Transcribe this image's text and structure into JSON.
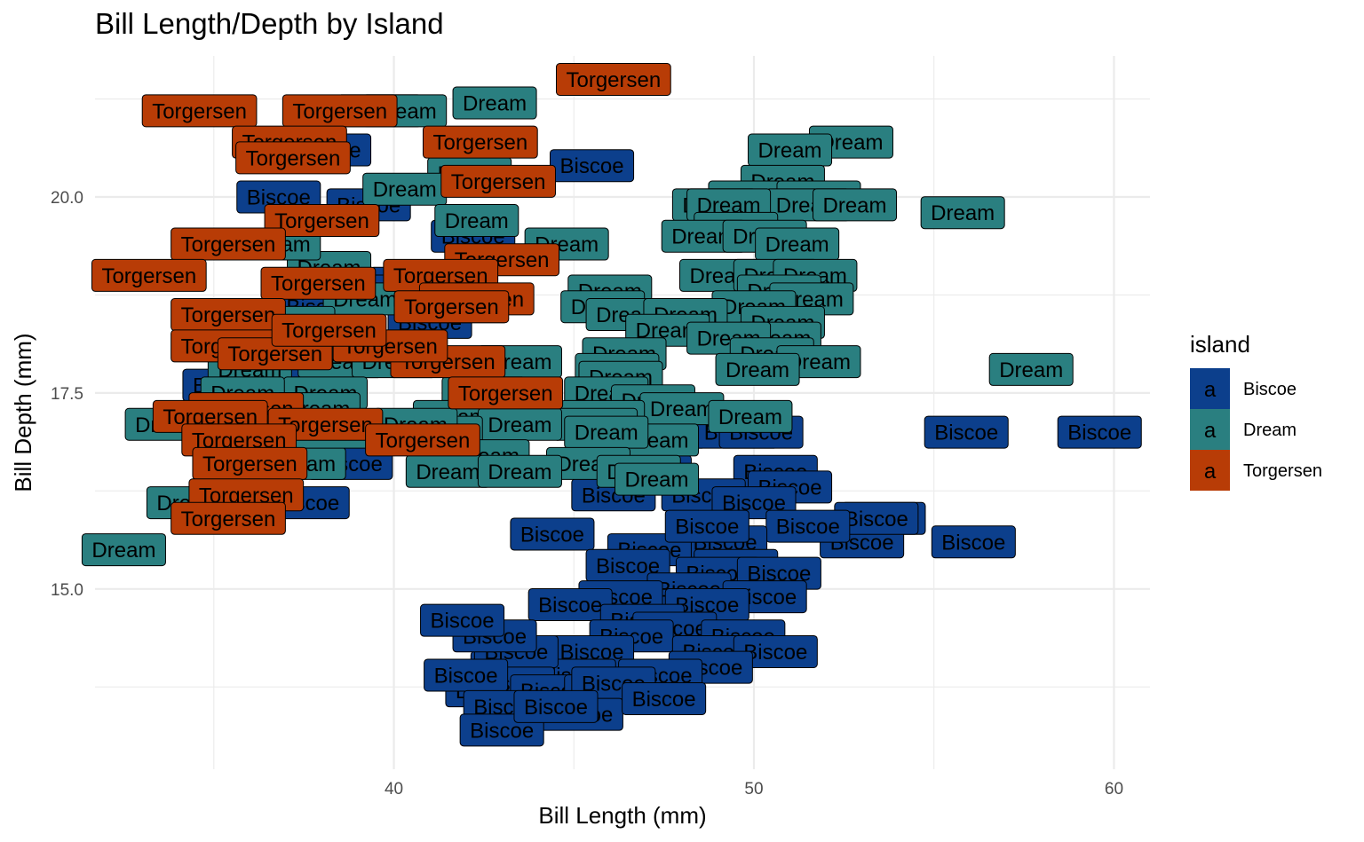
{
  "chart_data": {
    "type": "scatter",
    "title": "Bill Length/Depth by Island",
    "xlabel": "Bill Length (mm)",
    "ylabel": "Bill Depth (mm)",
    "xlim": [
      31.7,
      61.0
    ],
    "ylim": [
      12.7,
      21.8
    ],
    "x_ticks": [
      40,
      50,
      60
    ],
    "y_ticks": [
      15.0,
      17.5,
      20.0
    ],
    "x_tick_labels": [
      "40",
      "50",
      "60"
    ],
    "y_tick_labels": [
      "15.0",
      "17.5",
      "20.0"
    ],
    "grid": true,
    "legend": {
      "title": "island",
      "position": "right",
      "key_glyph": "a"
    },
    "colors": {
      "Biscoe": "#0C3F8C",
      "Dream": "#2A7F80",
      "Torgersen": "#B83C06"
    },
    "series": [
      {
        "name": "Biscoe",
        "points": [
          [
            45.5,
            20.4
          ],
          [
            40.5,
            18.9
          ],
          [
            39.6,
            21.1
          ],
          [
            38.2,
            20.6
          ],
          [
            39.3,
            19.9
          ],
          [
            36.8,
            20.0
          ],
          [
            42.2,
            19.5
          ],
          [
            38.9,
            18.8
          ],
          [
            41.6,
            18.7
          ],
          [
            41.0,
            18.4
          ],
          [
            37.9,
            18.6
          ],
          [
            36.4,
            17.6
          ],
          [
            35.3,
            17.6
          ],
          [
            37.8,
            17.3
          ],
          [
            38.8,
            16.6
          ],
          [
            37.6,
            16.1
          ],
          [
            47.5,
            17.0
          ],
          [
            49.5,
            17.0
          ],
          [
            50.2,
            17.0
          ],
          [
            55.9,
            17.0
          ],
          [
            59.6,
            17.0
          ],
          [
            50.6,
            16.5
          ],
          [
            51.0,
            16.3
          ],
          [
            46.1,
            16.2
          ],
          [
            48.6,
            16.2
          ],
          [
            50.0,
            16.1
          ],
          [
            53.6,
            15.9
          ],
          [
            56.1,
            15.6
          ],
          [
            53.0,
            15.6
          ],
          [
            53.4,
            15.9
          ],
          [
            51.5,
            15.8
          ],
          [
            49.2,
            15.6
          ],
          [
            44.4,
            15.7
          ],
          [
            47.1,
            15.5
          ],
          [
            46.5,
            15.3
          ],
          [
            49.5,
            15.3
          ],
          [
            49.0,
            15.2
          ],
          [
            50.7,
            15.2
          ],
          [
            48.2,
            15.0
          ],
          [
            50.3,
            14.9
          ],
          [
            46.3,
            14.9
          ],
          [
            48.7,
            14.8
          ],
          [
            44.9,
            14.8
          ],
          [
            46.9,
            14.6
          ],
          [
            47.8,
            14.5
          ],
          [
            49.7,
            14.4
          ],
          [
            46.6,
            14.4
          ],
          [
            48.9,
            14.2
          ],
          [
            45.5,
            14.2
          ],
          [
            50.6,
            14.2
          ],
          [
            45.0,
            13.9
          ],
          [
            48.8,
            14.0
          ],
          [
            47.4,
            13.9
          ],
          [
            43.3,
            14.0
          ],
          [
            43.4,
            14.2
          ],
          [
            42.6,
            13.7
          ],
          [
            43.3,
            13.8
          ],
          [
            44.4,
            13.7
          ],
          [
            45.9,
            13.7
          ],
          [
            46.1,
            13.8
          ],
          [
            42.0,
            13.9
          ],
          [
            43.1,
            13.5
          ],
          [
            45.2,
            13.4
          ],
          [
            47.5,
            13.6
          ],
          [
            43.0,
            13.2
          ],
          [
            44.5,
            13.5
          ],
          [
            42.8,
            14.4
          ],
          [
            41.9,
            14.6
          ],
          [
            47.1,
            16.5
          ],
          [
            48.7,
            15.8
          ]
        ]
      },
      {
        "name": "Dream",
        "points": [
          [
            42.8,
            21.2
          ],
          [
            40.3,
            21.1
          ],
          [
            52.7,
            20.7
          ],
          [
            51.0,
            20.6
          ],
          [
            42.1,
            20.3
          ],
          [
            50.8,
            20.2
          ],
          [
            40.3,
            20.1
          ],
          [
            49.9,
            20.0
          ],
          [
            51.8,
            20.0
          ],
          [
            51.5,
            19.9
          ],
          [
            48.9,
            19.9
          ],
          [
            52.8,
            19.9
          ],
          [
            49.3,
            19.9
          ],
          [
            55.8,
            19.8
          ],
          [
            42.3,
            19.7
          ],
          [
            49.5,
            19.6
          ],
          [
            48.6,
            19.5
          ],
          [
            50.3,
            19.5
          ],
          [
            51.2,
            19.4
          ],
          [
            44.8,
            19.4
          ],
          [
            38.2,
            19.1
          ],
          [
            36.8,
            19.4
          ],
          [
            49.1,
            19.0
          ],
          [
            50.6,
            19.0
          ],
          [
            51.7,
            19.0
          ],
          [
            50.7,
            18.8
          ],
          [
            51.6,
            18.7
          ],
          [
            46.0,
            18.8
          ],
          [
            39.2,
            18.7
          ],
          [
            42.0,
            18.6
          ],
          [
            45.8,
            18.6
          ],
          [
            50.0,
            18.6
          ],
          [
            46.5,
            18.5
          ],
          [
            48.1,
            18.5
          ],
          [
            37.2,
            18.4
          ],
          [
            50.8,
            18.4
          ],
          [
            50.7,
            18.2
          ],
          [
            47.6,
            18.3
          ],
          [
            49.3,
            18.2
          ],
          [
            38.5,
            17.9
          ],
          [
            43.5,
            17.9
          ],
          [
            46.4,
            18.0
          ],
          [
            50.5,
            18.0
          ],
          [
            51.8,
            17.9
          ],
          [
            46.2,
            17.8
          ],
          [
            50.1,
            17.8
          ],
          [
            57.7,
            17.8
          ],
          [
            36.0,
            17.8
          ],
          [
            40.0,
            17.9
          ],
          [
            38.1,
            17.5
          ],
          [
            46.3,
            17.7
          ],
          [
            45.9,
            17.5
          ],
          [
            42.5,
            17.5
          ],
          [
            47.2,
            17.4
          ],
          [
            35.8,
            17.5
          ],
          [
            48.0,
            17.3
          ],
          [
            42.8,
            17.3
          ],
          [
            41.7,
            17.2
          ],
          [
            45.8,
            17.2
          ],
          [
            45.6,
            17.1
          ],
          [
            49.9,
            17.2
          ],
          [
            43.5,
            17.1
          ],
          [
            33.7,
            17.1
          ],
          [
            36.0,
            17.0
          ],
          [
            41.3,
            17.0
          ],
          [
            47.3,
            16.9
          ],
          [
            45.9,
            17.0
          ],
          [
            42.6,
            16.7
          ],
          [
            37.3,
            16.8
          ],
          [
            45.4,
            16.6
          ],
          [
            41.5,
            16.5
          ],
          [
            37.5,
            16.6
          ],
          [
            43.5,
            16.5
          ],
          [
            46.8,
            16.5
          ],
          [
            47.3,
            16.4
          ],
          [
            34.3,
            16.1
          ],
          [
            32.5,
            15.5
          ],
          [
            38.4,
            17.0
          ],
          [
            40.6,
            17.1
          ],
          [
            37.9,
            17.3
          ]
        ]
      },
      {
        "name": "Torgersen",
        "points": [
          [
            46.1,
            21.5
          ],
          [
            34.6,
            21.1
          ],
          [
            38.5,
            21.1
          ],
          [
            37.1,
            20.7
          ],
          [
            42.4,
            20.7
          ],
          [
            37.2,
            20.5
          ],
          [
            42.9,
            20.2
          ],
          [
            38.0,
            19.7
          ],
          [
            35.4,
            19.4
          ],
          [
            43.0,
            19.2
          ],
          [
            41.3,
            19.0
          ],
          [
            33.2,
            19.0
          ],
          [
            37.9,
            18.9
          ],
          [
            35.4,
            18.5
          ],
          [
            35.4,
            18.1
          ],
          [
            36.7,
            18.0
          ],
          [
            41.5,
            17.9
          ],
          [
            43.1,
            17.5
          ],
          [
            35.9,
            17.3
          ],
          [
            38.1,
            17.1
          ],
          [
            34.9,
            17.2
          ],
          [
            35.7,
            16.9
          ],
          [
            40.8,
            16.9
          ],
          [
            36.0,
            16.6
          ],
          [
            35.9,
            16.2
          ],
          [
            35.4,
            15.9
          ],
          [
            42.3,
            18.7
          ],
          [
            41.6,
            18.6
          ],
          [
            39.9,
            18.1
          ],
          [
            38.2,
            18.3
          ]
        ]
      }
    ]
  }
}
